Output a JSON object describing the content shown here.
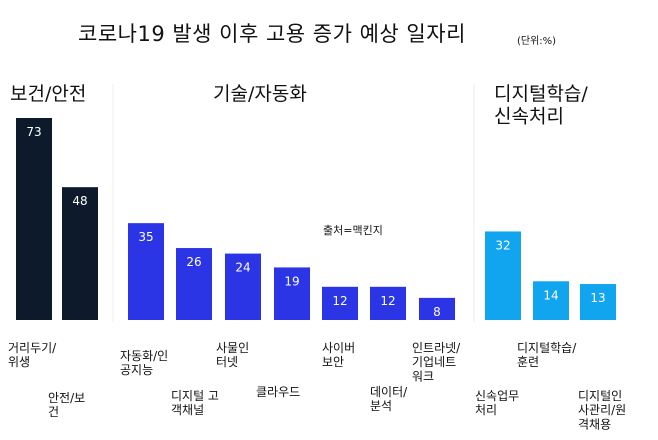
{
  "title": "코로나19 발생 이후 고용 증가 예상 일자리",
  "unit": "(단위:%)",
  "source": "출처=맥킨지",
  "chart_data": {
    "type": "bar",
    "title": "코로나19 발생 이후 고용 증가 예상 일자리",
    "unit": "%",
    "ylim": [
      0,
      73
    ],
    "groups": [
      {
        "name": "보건/안전",
        "color": "#0c1a2b",
        "categories": [
          "거리두기/위생",
          "안전/보건"
        ],
        "values": [
          73,
          48
        ]
      },
      {
        "name": "기술/자동화",
        "color": "#2b35e6",
        "categories": [
          "자동화/인공지능",
          "디지털 고객채널",
          "사물인터넷",
          "클라우드",
          "사이버보안",
          "데이터/분석",
          "인트라넷/기업네트워크"
        ],
        "values": [
          35,
          26,
          24,
          19,
          12,
          12,
          8
        ]
      },
      {
        "name": "디지털학습/신속처리",
        "color": "#12a5ef",
        "categories": [
          "신속업무처리",
          "디지털학습/훈련",
          "디지털인사관리/원격채용"
        ],
        "values": [
          32,
          14,
          13
        ]
      }
    ],
    "group_title_lines": [
      [
        "보건/안전"
      ],
      [
        "기술/자동화"
      ],
      [
        "디지털학습/",
        "신속처리"
      ]
    ],
    "category_label_lines": [
      [
        [
          "거리두기/",
          "위생"
        ],
        [
          "안전/보",
          "건"
        ]
      ],
      [
        [
          "자동화/인",
          "공지능"
        ],
        [
          "디지털 고",
          "객채널"
        ],
        [
          "사물인",
          "터넷"
        ],
        [
          "클라우드"
        ],
        [
          "사이버",
          "보안"
        ],
        [
          "데이터/",
          "분석"
        ],
        [
          "인트라넷/",
          "기업네트",
          "워크"
        ]
      ],
      [
        [
          "신속업무",
          "처리"
        ],
        [
          "디지털학습/",
          "훈련"
        ],
        [
          "디지털인",
          "사관리/원",
          "격채용"
        ]
      ]
    ]
  }
}
